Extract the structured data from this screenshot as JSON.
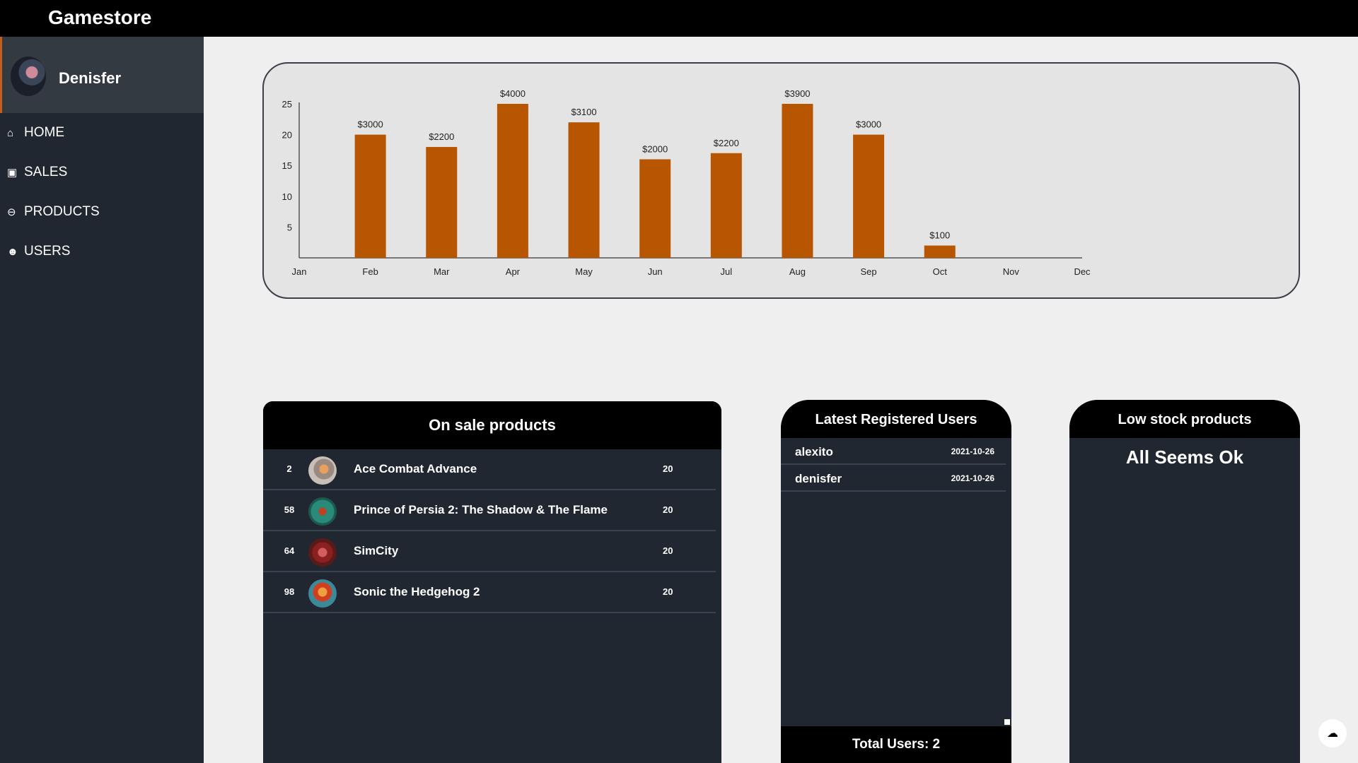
{
  "app": {
    "title": "Gamestore"
  },
  "profile": {
    "name": "Denisfer"
  },
  "nav": [
    {
      "label": "HOME",
      "icon": "home-icon"
    },
    {
      "label": "SALES",
      "icon": "money-icon"
    },
    {
      "label": "PRODUCTS",
      "icon": "gamepad-icon"
    },
    {
      "label": "USERS",
      "icon": "users-icon"
    }
  ],
  "chart_data": {
    "type": "bar",
    "categories": [
      "Jan",
      "Feb",
      "Mar",
      "Apr",
      "May",
      "Jun",
      "Jul",
      "Aug",
      "Sep",
      "Oct",
      "Nov",
      "Dec"
    ],
    "values": [
      0,
      20,
      18,
      25,
      22,
      16,
      17,
      25,
      20,
      2,
      0,
      0
    ],
    "labels": [
      "",
      "$3000",
      "$2200",
      "$4000",
      "$3100",
      "$2000",
      "$2200",
      "$3900",
      "$3000",
      "$100",
      "",
      ""
    ],
    "y_ticks": [
      5,
      10,
      15,
      20,
      25
    ],
    "ylim": [
      0,
      25
    ],
    "grid": false,
    "bar_color": "#b85500",
    "title": "",
    "xlabel": "",
    "ylabel": ""
  },
  "on_sale": {
    "title": "On sale products",
    "rows": [
      {
        "id": "2",
        "name": "Ace Combat Advance",
        "stock": "20"
      },
      {
        "id": "58",
        "name": "Prince of Persia 2: The Shadow & The Flame",
        "stock": "20"
      },
      {
        "id": "64",
        "name": "SimCity",
        "stock": "20"
      },
      {
        "id": "98",
        "name": "Sonic the Hedgehog 2",
        "stock": "20"
      }
    ]
  },
  "latest_users": {
    "title": "Latest Registered Users",
    "rows": [
      {
        "name": "alexito",
        "date": "2021-10-26"
      },
      {
        "name": "denisfer",
        "date": "2021-10-26"
      }
    ],
    "total": "Total Users: 2"
  },
  "low_stock": {
    "title": "Low stock products",
    "message": "All Seems Ok"
  },
  "colors": {
    "accent": "#b85500",
    "sidebar": "#212730",
    "header": "#000000"
  }
}
